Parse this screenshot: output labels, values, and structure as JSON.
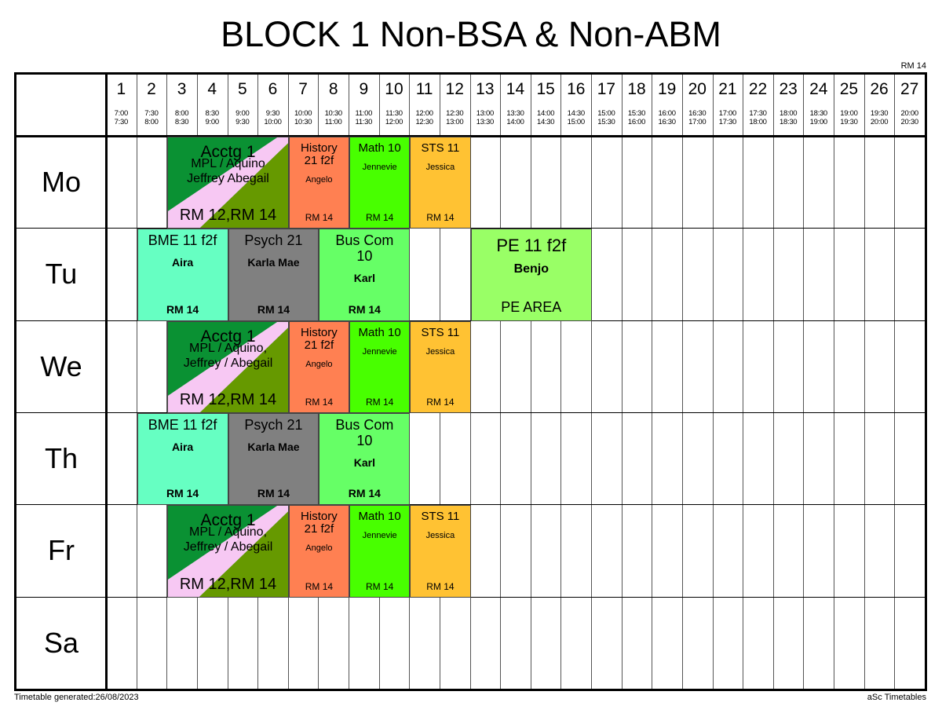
{
  "title": "BLOCK 1 Non-BSA & Non-ABM",
  "room_label": "RM 14",
  "footer": {
    "generated": "Timetable generated:26/08/2023",
    "brand": "aSc Timetables"
  },
  "columns": [
    {
      "num": "1",
      "start": "7:00",
      "end": "7:30"
    },
    {
      "num": "2",
      "start": "7:30",
      "end": "8:00"
    },
    {
      "num": "3",
      "start": "8:00",
      "end": "8:30"
    },
    {
      "num": "4",
      "start": "8:30",
      "end": "9:00"
    },
    {
      "num": "5",
      "start": "9:00",
      "end": "9:30"
    },
    {
      "num": "6",
      "start": "9:30",
      "end": "10:00"
    },
    {
      "num": "7",
      "start": "10:00",
      "end": "10:30"
    },
    {
      "num": "8",
      "start": "10:30",
      "end": "11:00"
    },
    {
      "num": "9",
      "start": "11:00",
      "end": "11:30"
    },
    {
      "num": "10",
      "start": "11:30",
      "end": "12:00"
    },
    {
      "num": "11",
      "start": "12:00",
      "end": "12:30"
    },
    {
      "num": "12",
      "start": "12:30",
      "end": "13:00"
    },
    {
      "num": "13",
      "start": "13:00",
      "end": "13:30"
    },
    {
      "num": "14",
      "start": "13:30",
      "end": "14:00"
    },
    {
      "num": "15",
      "start": "14:00",
      "end": "14:30"
    },
    {
      "num": "16",
      "start": "14:30",
      "end": "15:00"
    },
    {
      "num": "17",
      "start": "15:00",
      "end": "15:30"
    },
    {
      "num": "18",
      "start": "15:30",
      "end": "16:00"
    },
    {
      "num": "19",
      "start": "16:00",
      "end": "16:30"
    },
    {
      "num": "20",
      "start": "16:30",
      "end": "17:00"
    },
    {
      "num": "21",
      "start": "17:00",
      "end": "17:30"
    },
    {
      "num": "22",
      "start": "17:30",
      "end": "18:00"
    },
    {
      "num": "23",
      "start": "18:00",
      "end": "18:30"
    },
    {
      "num": "24",
      "start": "18:30",
      "end": "19:00"
    },
    {
      "num": "25",
      "start": "19:00",
      "end": "19:30"
    },
    {
      "num": "26",
      "start": "19:30",
      "end": "20:00"
    },
    {
      "num": "27",
      "start": "20:00",
      "end": "20:30"
    }
  ],
  "days": [
    "Mo",
    "Tu",
    "We",
    "Th",
    "Fr",
    "Sa"
  ],
  "colors": {
    "acctg_dark": "#0a9133",
    "acctg_pink": "#f7c8f3",
    "acctg_olive": "#669900",
    "history": "#ff8052",
    "math": "#48ff00",
    "sts": "#ffc233",
    "bme": "#66ffc2",
    "psych": "#808080",
    "buscom": "#66ff66",
    "pe": "#99ff66"
  },
  "lessons": [
    {
      "day": 0,
      "start": 3,
      "span": 4,
      "type": "acct",
      "subject": "Acctg 1",
      "teacher": "MPL / Aquino Jeffrey Abegail",
      "room": "RM 12,RM 14"
    },
    {
      "day": 0,
      "start": 7,
      "span": 2,
      "type": "small",
      "color": "history",
      "subject": "History 21 f2f",
      "teacher": "Angelo",
      "room": "RM 14"
    },
    {
      "day": 0,
      "start": 9,
      "span": 2,
      "type": "small",
      "color": "math",
      "subject": "Math 10",
      "teacher": "Jennevie",
      "room": "RM 14"
    },
    {
      "day": 0,
      "start": 11,
      "span": 2,
      "type": "small",
      "color": "sts",
      "subject": "STS 11",
      "teacher": "Jessica",
      "room": "RM 14"
    },
    {
      "day": 1,
      "start": 2,
      "span": 3,
      "type": "big",
      "color": "bme",
      "subject": "BME 11 f2f",
      "teacher": "Aira",
      "room": "RM 14"
    },
    {
      "day": 1,
      "start": 5,
      "span": 3,
      "type": "big",
      "color": "psych",
      "subject": "Psych 21",
      "teacher": "Karla Mae",
      "room": "RM 14"
    },
    {
      "day": 1,
      "start": 8,
      "span": 3,
      "type": "big",
      "color": "buscom",
      "subject": "Bus Com 10",
      "teacher": "Karl",
      "room": "RM 14"
    },
    {
      "day": 1,
      "start": 13,
      "span": 4,
      "type": "pe",
      "color": "pe",
      "subject": "PE 11 f2f",
      "teacher": "Benjo",
      "room": "PE AREA"
    },
    {
      "day": 2,
      "start": 3,
      "span": 4,
      "type": "acct",
      "subject": "Acctg 1",
      "teacher": "MPL / Aquino, Jeffrey / Abegail",
      "room": "RM 12,RM 14"
    },
    {
      "day": 2,
      "start": 7,
      "span": 2,
      "type": "small",
      "color": "history",
      "subject": "History 21 f2f",
      "teacher": "Angelo",
      "room": "RM 14"
    },
    {
      "day": 2,
      "start": 9,
      "span": 2,
      "type": "small",
      "color": "math",
      "subject": "Math 10",
      "teacher": "Jennevie",
      "room": "RM 14"
    },
    {
      "day": 2,
      "start": 11,
      "span": 2,
      "type": "small",
      "color": "sts",
      "subject": "STS 11",
      "teacher": "Jessica",
      "room": "RM 14"
    },
    {
      "day": 3,
      "start": 2,
      "span": 3,
      "type": "big",
      "color": "bme",
      "subject": "BME 11 f2f",
      "teacher": "Aira",
      "room": "RM 14"
    },
    {
      "day": 3,
      "start": 5,
      "span": 3,
      "type": "big",
      "color": "psych",
      "subject": "Psych 21",
      "teacher": "Karla Mae",
      "room": "RM 14"
    },
    {
      "day": 3,
      "start": 8,
      "span": 3,
      "type": "big",
      "color": "buscom",
      "subject": "Bus Com 10",
      "teacher": "Karl",
      "room": "RM 14"
    },
    {
      "day": 4,
      "start": 3,
      "span": 4,
      "type": "acct",
      "subject": "Acctg 1",
      "teacher": "MPL / Aquino, Jeffrey / Abegail",
      "room": "RM 12,RM 14"
    },
    {
      "day": 4,
      "start": 7,
      "span": 2,
      "type": "small",
      "color": "history",
      "subject": "History 21 f2f",
      "teacher": "Angelo",
      "room": "RM 14"
    },
    {
      "day": 4,
      "start": 9,
      "span": 2,
      "type": "small",
      "color": "math",
      "subject": "Math 10",
      "teacher": "Jennevie",
      "room": "RM 14"
    },
    {
      "day": 4,
      "start": 11,
      "span": 2,
      "type": "small",
      "color": "sts",
      "subject": "STS 11",
      "teacher": "Jessica",
      "room": "RM 14"
    }
  ]
}
